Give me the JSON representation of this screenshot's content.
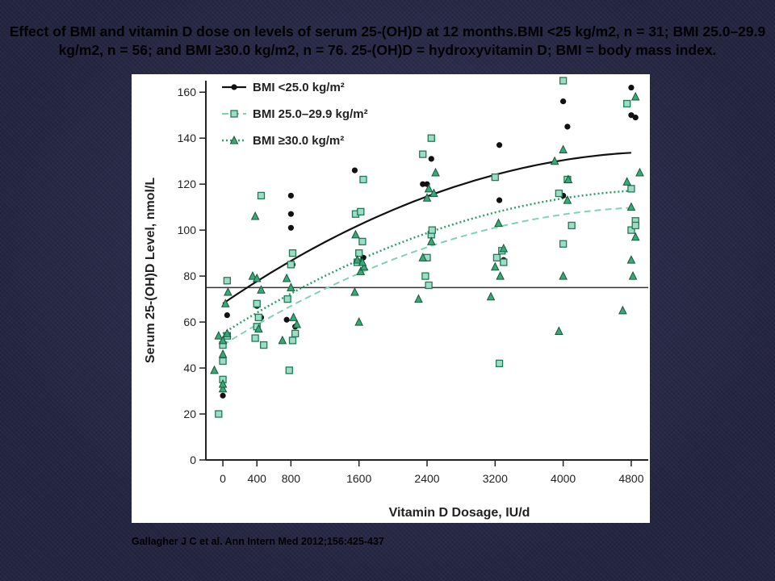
{
  "slide": {
    "title": "Effect of BMI and vitamin D dose on levels of serum 25-(OH)D at 12 months.BMI <25 kg/m2, n = 31; BMI 25.0–29.9 kg/m2, n = 56; and BMI ≥30.0 kg/m2, n = 76. 25-(OH)D = hydroxyvitamin D; BMI = body mass index.",
    "citation": "Gallagher J C et al. Ann Intern Med 2012;156:425-437"
  },
  "colors": {
    "black": "#111111",
    "green": "#2e9e6a",
    "light_green": "#7fd3b0",
    "square_fill": "#9fdcc6",
    "triangle_fill": "#3aa876"
  },
  "chart_data": {
    "type": "scatter",
    "xlabel": "Vitamin D Dosage, IU/d",
    "ylabel": "Serum 25-(OH)D Level, nmol/L",
    "categories": [
      "0",
      "400",
      "800",
      "1600",
      "2400",
      "3200",
      "4000",
      "4800"
    ],
    "yticks": [
      "0",
      "20",
      "40",
      "60",
      "80",
      "100",
      "120",
      "140",
      "160"
    ],
    "ylim": [
      0,
      165
    ],
    "xlim": [
      -200,
      5000
    ],
    "reference_line": 75,
    "legend_position": "top-left",
    "series": [
      {
        "name": "BMI <25.0 kg/m²",
        "marker": "circle",
        "points": [
          [
            0,
            28
          ],
          [
            50,
            63
          ],
          [
            400,
            67
          ],
          [
            450,
            62
          ],
          [
            800,
            115
          ],
          [
            800,
            107
          ],
          [
            800,
            101
          ],
          [
            750,
            61
          ],
          [
            820,
            85
          ],
          [
            850,
            58
          ],
          [
            1550,
            126
          ],
          [
            1600,
            108
          ],
          [
            1650,
            88
          ],
          [
            2350,
            120
          ],
          [
            2400,
            120
          ],
          [
            2450,
            131
          ],
          [
            3250,
            137
          ],
          [
            3250,
            113
          ],
          [
            3300,
            87
          ],
          [
            4000,
            156
          ],
          [
            4000,
            115
          ],
          [
            4050,
            145
          ],
          [
            4800,
            162
          ],
          [
            4800,
            150
          ],
          [
            4850,
            149
          ]
        ]
      },
      {
        "name": "BMI 25.0–29.9 kg/m²",
        "marker": "square",
        "points": [
          [
            -50,
            20
          ],
          [
            0,
            35
          ],
          [
            0,
            43
          ],
          [
            0,
            50
          ],
          [
            50,
            54
          ],
          [
            50,
            78
          ],
          [
            380,
            53
          ],
          [
            400,
            58
          ],
          [
            450,
            115
          ],
          [
            420,
            62
          ],
          [
            400,
            68
          ],
          [
            480,
            50
          ],
          [
            800,
            85
          ],
          [
            820,
            90
          ],
          [
            760,
            70
          ],
          [
            780,
            39
          ],
          [
            850,
            55
          ],
          [
            820,
            52
          ],
          [
            1560,
            107
          ],
          [
            1620,
            108
          ],
          [
            1650,
            122
          ],
          [
            1600,
            90
          ],
          [
            1640,
            95
          ],
          [
            1580,
            86
          ],
          [
            2350,
            133
          ],
          [
            2450,
            140
          ],
          [
            2400,
            88
          ],
          [
            2380,
            80
          ],
          [
            2420,
            76
          ],
          [
            2450,
            98
          ],
          [
            2460,
            100
          ],
          [
            3200,
            123
          ],
          [
            3250,
            42
          ],
          [
            3280,
            91
          ],
          [
            3220,
            88
          ],
          [
            3300,
            86
          ],
          [
            3950,
            116
          ],
          [
            4000,
            165
          ],
          [
            4050,
            122
          ],
          [
            4000,
            94
          ],
          [
            4100,
            102
          ],
          [
            4750,
            155
          ],
          [
            4800,
            118
          ],
          [
            4800,
            100
          ],
          [
            4850,
            104
          ],
          [
            4850,
            102
          ]
        ]
      },
      {
        "name": "BMI ≥30.0 kg/m²",
        "marker": "triangle",
        "points": [
          [
            -100,
            39
          ],
          [
            -50,
            54
          ],
          [
            0,
            46
          ],
          [
            0,
            52
          ],
          [
            0,
            31
          ],
          [
            0,
            33
          ],
          [
            30,
            68
          ],
          [
            60,
            73
          ],
          [
            50,
            55
          ],
          [
            350,
            80
          ],
          [
            380,
            106
          ],
          [
            450,
            74
          ],
          [
            420,
            57
          ],
          [
            400,
            79
          ],
          [
            750,
            79
          ],
          [
            700,
            52
          ],
          [
            800,
            75
          ],
          [
            830,
            62
          ],
          [
            870,
            59
          ],
          [
            1550,
            73
          ],
          [
            1560,
            98
          ],
          [
            1600,
            60
          ],
          [
            1580,
            87
          ],
          [
            1620,
            82
          ],
          [
            1660,
            84
          ],
          [
            1640,
            86
          ],
          [
            2300,
            70
          ],
          [
            2350,
            88
          ],
          [
            2400,
            114
          ],
          [
            2420,
            118
          ],
          [
            2450,
            95
          ],
          [
            2500,
            125
          ],
          [
            2480,
            116
          ],
          [
            3150,
            71
          ],
          [
            3200,
            84
          ],
          [
            3260,
            80
          ],
          [
            3300,
            92
          ],
          [
            3240,
            103
          ],
          [
            3900,
            130
          ],
          [
            3950,
            56
          ],
          [
            4000,
            135
          ],
          [
            4000,
            80
          ],
          [
            4050,
            113
          ],
          [
            4060,
            122
          ],
          [
            4700,
            65
          ],
          [
            4750,
            121
          ],
          [
            4800,
            87
          ],
          [
            4850,
            97
          ],
          [
            4800,
            110
          ],
          [
            4900,
            125
          ],
          [
            4850,
            158
          ],
          [
            4820,
            80
          ]
        ]
      }
    ],
    "fit_curves": [
      {
        "series": "BMI <25.0 kg/m²",
        "style": "solid",
        "a": 68,
        "b": 0.0252,
        "c": 2.4e-06
      },
      {
        "series": "BMI 25.0–29.9 kg/m²",
        "style": "dashed",
        "a": 50,
        "b": 0.023,
        "c": 2.2e-06
      },
      {
        "series": "BMI ≥30.0 kg/m²",
        "style": "dotted",
        "a": 55,
        "b": 0.0235,
        "c": 2.2e-06
      }
    ]
  }
}
